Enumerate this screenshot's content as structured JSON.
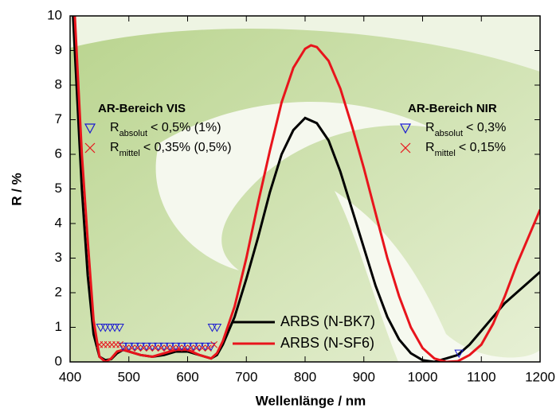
{
  "chart_data": {
    "type": "line",
    "x_label": "Wellenlänge / nm",
    "y_label": "R / %",
    "xlim": [
      400,
      1200
    ],
    "xticks": [
      400,
      500,
      600,
      700,
      800,
      900,
      1000,
      1100,
      1200
    ],
    "ylim": [
      0,
      10
    ],
    "yticks": [
      0,
      1,
      2,
      3,
      4,
      5,
      6,
      7,
      8,
      9,
      10
    ],
    "series": [
      {
        "name": "ARBS (N-BK7)",
        "color": "#000000",
        "x": [
          405,
          420,
          430,
          440,
          450,
          460,
          470,
          480,
          490,
          500,
          520,
          540,
          560,
          580,
          600,
          620,
          640,
          650,
          660,
          680,
          700,
          720,
          740,
          760,
          780,
          800,
          820,
          840,
          860,
          880,
          900,
          920,
          940,
          960,
          980,
          1000,
          1020,
          1040,
          1060,
          1080,
          1100,
          1120,
          1140,
          1160,
          1180,
          1200
        ],
        "values": [
          10,
          5,
          2.5,
          0.8,
          0.15,
          0.05,
          0.08,
          0.25,
          0.35,
          0.3,
          0.2,
          0.15,
          0.2,
          0.3,
          0.3,
          0.2,
          0.1,
          0.2,
          0.5,
          1.3,
          2.4,
          3.6,
          4.9,
          6.0,
          6.7,
          7.05,
          6.9,
          6.4,
          5.5,
          4.4,
          3.3,
          2.2,
          1.3,
          0.65,
          0.25,
          0.05,
          0.0,
          0.1,
          0.2,
          0.5,
          0.9,
          1.3,
          1.7,
          2.0,
          2.3,
          2.6
        ]
      },
      {
        "name": "ARBS (N-SF6)",
        "color": "#e8141c",
        "x": [
          408,
          420,
          430,
          440,
          450,
          460,
          470,
          480,
          490,
          500,
          520,
          540,
          560,
          580,
          600,
          620,
          640,
          650,
          660,
          680,
          700,
          720,
          740,
          760,
          780,
          800,
          810,
          820,
          840,
          860,
          880,
          900,
          920,
          940,
          960,
          980,
          1000,
          1020,
          1040,
          1060,
          1080,
          1100,
          1120,
          1140,
          1160,
          1180,
          1200
        ],
        "values": [
          10,
          6,
          3.5,
          1.2,
          0.15,
          0.0,
          0.1,
          0.3,
          0.35,
          0.3,
          0.2,
          0.15,
          0.25,
          0.35,
          0.35,
          0.2,
          0.1,
          0.25,
          0.6,
          1.6,
          3.0,
          4.6,
          6.1,
          7.5,
          8.5,
          9.05,
          9.15,
          9.1,
          8.7,
          7.9,
          6.8,
          5.6,
          4.3,
          3.0,
          1.9,
          1.0,
          0.4,
          0.1,
          0.0,
          0.02,
          0.2,
          0.5,
          1.1,
          1.9,
          2.8,
          3.6,
          4.4
        ]
      },
      {
        "marker": "triangle",
        "color": "#1a1ad0",
        "x": [
          452,
          460,
          468,
          476,
          484,
          642,
          650,
          490,
          500,
          510,
          520,
          530,
          540,
          550,
          560,
          570,
          580,
          590,
          600,
          610,
          620,
          630,
          640,
          1062
        ],
        "values": [
          1,
          1,
          1,
          1,
          1,
          1,
          1,
          0.45,
          0.45,
          0.45,
          0.45,
          0.45,
          0.45,
          0.45,
          0.45,
          0.45,
          0.45,
          0.45,
          0.45,
          0.45,
          0.45,
          0.45,
          0.45,
          0.25
        ]
      },
      {
        "marker": "cross",
        "color": "#e8141c",
        "x": [
          450,
          457,
          464,
          471,
          478,
          485,
          495,
          505,
          515,
          525,
          535,
          545,
          555,
          565,
          575,
          585,
          595,
          605,
          615,
          625,
          635,
          645
        ],
        "values": [
          0.5,
          0.5,
          0.5,
          0.5,
          0.5,
          0.5,
          0.4,
          0.4,
          0.4,
          0.4,
          0.4,
          0.4,
          0.4,
          0.4,
          0.4,
          0.4,
          0.4,
          0.4,
          0.4,
          0.4,
          0.4,
          0.5
        ]
      }
    ],
    "annotations": [
      {
        "title": "AR-Bereich VIS",
        "entries": [
          [
            "R",
            "absolut",
            "< 0,5% (1%)"
          ],
          [
            "R",
            "mittel",
            "< 0,35% (0,5%)"
          ]
        ]
      },
      {
        "title": "AR-Bereich NIR",
        "entries": [
          [
            "R",
            "absolut",
            "< 0,3%"
          ],
          [
            "R",
            "mittel",
            "< 0,15%"
          ]
        ]
      }
    ]
  }
}
